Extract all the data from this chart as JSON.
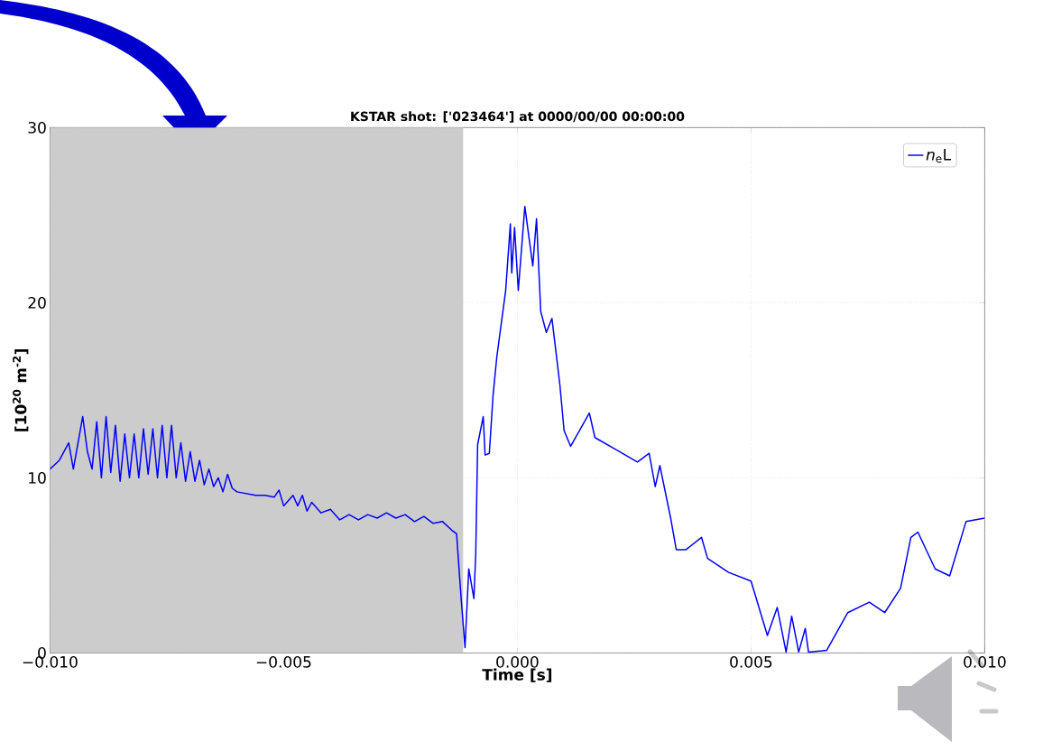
{
  "chart_data": {
    "type": "line",
    "title": "KSTAR shot: ['023464'] at 0000/00/00 00:00:00",
    "xlabel": "Time [s]",
    "ylabel": "[10$^{20}$ m$^{-2}$]",
    "x": [
      -0.01,
      -0.0098,
      -0.0096,
      -0.0095,
      -0.0093,
      -0.0092,
      -0.0091,
      -0.009,
      -0.0089,
      -0.0088,
      -0.0087,
      -0.0086,
      -0.0085,
      -0.0084,
      -0.0083,
      -0.0082,
      -0.0081,
      -0.008,
      -0.0079,
      -0.0078,
      -0.0077,
      -0.0076,
      -0.0075,
      -0.0074,
      -0.0073,
      -0.0072,
      -0.0071,
      -0.007,
      -0.0069,
      -0.0068,
      -0.0067,
      -0.0066,
      -0.0065,
      -0.0064,
      -0.0063,
      -0.0062,
      -0.0061,
      -0.006,
      -0.0058,
      -0.0056,
      -0.0054,
      -0.0052,
      -0.0051,
      -0.005,
      -0.0048,
      -0.0047,
      -0.0046,
      -0.0045,
      -0.0044,
      -0.0042,
      -0.004,
      -0.0038,
      -0.0036,
      -0.0034,
      -0.0032,
      -0.003,
      -0.0028,
      -0.0026,
      -0.0024,
      -0.0022,
      -0.002,
      -0.0018,
      -0.0016,
      -0.0014,
      -0.0013,
      -0.0012,
      -0.00112,
      -0.00104,
      -0.00093,
      -0.00089,
      -0.00085,
      -0.00073,
      -0.00069,
      -0.0006,
      -0.00052,
      -0.00044,
      -0.00033,
      -0.00025,
      -0.00015,
      -0.00012,
      -6e-05,
      2e-05,
      0.00016,
      0.00033,
      0.00041,
      0.0005,
      0.00062,
      0.00074,
      0.00083,
      0.00091,
      0.001,
      0.00114,
      0.00154,
      0.00166,
      0.00212,
      0.00257,
      0.00282,
      0.00295,
      0.00305,
      0.00328,
      0.0034,
      0.00361,
      0.00394,
      0.00407,
      0.00452,
      0.005,
      0.00535,
      0.00556,
      0.00575,
      0.00587,
      0.00602,
      0.00616,
      0.00623,
      0.00662,
      0.00707,
      0.00753,
      0.00786,
      0.0082,
      0.00842,
      0.00857,
      0.00894,
      0.00925,
      0.0096,
      0.01
    ],
    "series": [
      {
        "name": "*n*$_{e}$L",
        "color": "#0000ff",
        "values": [
          10.5,
          11.0,
          12.0,
          10.5,
          13.5,
          11.5,
          10.5,
          13.2,
          10.0,
          13.5,
          10.3,
          13.0,
          9.8,
          12.5,
          10.0,
          12.5,
          10.0,
          12.8,
          10.2,
          12.8,
          10.0,
          13.0,
          10.0,
          13.0,
          10.0,
          12.0,
          9.8,
          11.5,
          9.8,
          11.0,
          9.6,
          10.5,
          9.5,
          10.0,
          9.2,
          10.2,
          9.4,
          9.2,
          9.1,
          9.0,
          9.0,
          8.9,
          9.3,
          8.4,
          9.0,
          8.4,
          9.0,
          8.1,
          8.6,
          8.0,
          8.2,
          7.6,
          7.9,
          7.6,
          7.9,
          7.7,
          8.0,
          7.7,
          7.9,
          7.5,
          7.8,
          7.4,
          7.5,
          7.0,
          6.8,
          3.0,
          0.3,
          4.8,
          3.1,
          5.7,
          11.9,
          13.5,
          11.3,
          11.4,
          14.7,
          16.9,
          19.1,
          20.7,
          24.5,
          21.7,
          24.3,
          20.7,
          25.5,
          22.1,
          24.8,
          19.5,
          18.3,
          19.1,
          17.1,
          15.3,
          12.7,
          11.8,
          13.7,
          12.3,
          11.6,
          10.9,
          11.4,
          9.5,
          10.7,
          7.7,
          5.9,
          5.9,
          6.6,
          5.4,
          4.6,
          4.1,
          1.0,
          2.6,
          0.05,
          2.1,
          0.05,
          1.4,
          0.05,
          0.15,
          2.3,
          2.9,
          2.3,
          3.7,
          6.6,
          6.9,
          4.8,
          4.4,
          7.5,
          7.7
        ]
      }
    ],
    "xlim": [
      -0.01,
      0.01
    ],
    "ylim": [
      0,
      30
    ],
    "xticks": [
      {
        "value": -0.01,
        "label": "−0.010"
      },
      {
        "value": -0.005,
        "label": "−0.005"
      },
      {
        "value": 0,
        "label": "0.000"
      },
      {
        "value": 0.005,
        "label": "0.005"
      },
      {
        "value": 0.01,
        "label": "0.010"
      }
    ],
    "yticks": [
      0,
      10,
      20,
      30
    ],
    "bands": [
      {
        "axis": "x",
        "from": -0.01,
        "to": -0.00116,
        "color": "#cccccc"
      }
    ],
    "grid": true,
    "legend": "top right",
    "line_style": "solid"
  }
}
